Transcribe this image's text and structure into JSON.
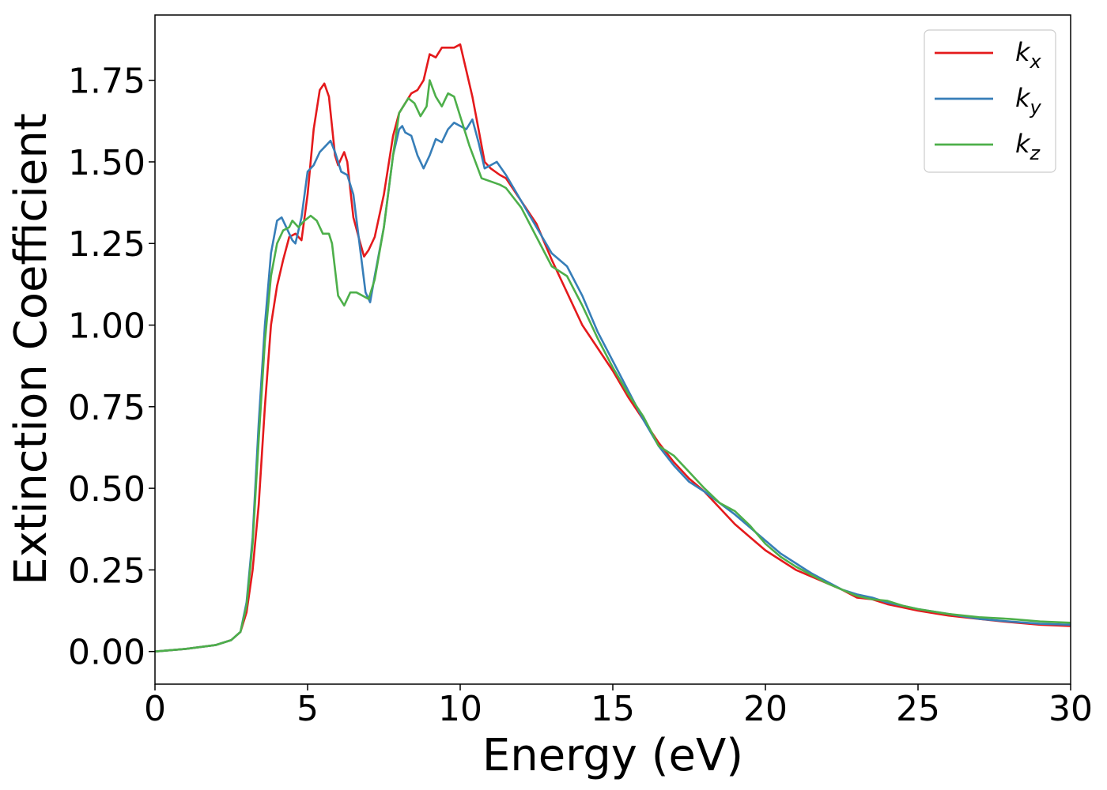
{
  "chart_data": {
    "type": "line",
    "title": "",
    "xlabel": "Energy (eV)",
    "ylabel": "Extinction Coefficient",
    "xlim": [
      0,
      30
    ],
    "ylim": [
      -0.1,
      1.95
    ],
    "x_ticks": [
      0,
      5,
      10,
      15,
      20,
      25,
      30
    ],
    "y_ticks": [
      0.0,
      0.25,
      0.5,
      0.75,
      1.0,
      1.25,
      1.5,
      1.75
    ],
    "x_tick_labels": [
      "0",
      "5",
      "10",
      "15",
      "20",
      "25",
      "30"
    ],
    "y_tick_labels": [
      "0.00",
      "0.25",
      "0.50",
      "0.75",
      "1.00",
      "1.25",
      "1.50",
      "1.75"
    ],
    "grid": false,
    "legend_position": "top-right",
    "series": [
      {
        "name": "k",
        "subscript": "x",
        "color": "#e41a1c",
        "points": [
          [
            0,
            0.0
          ],
          [
            1,
            0.008
          ],
          [
            2,
            0.02
          ],
          [
            2.5,
            0.035
          ],
          [
            2.8,
            0.06
          ],
          [
            3.0,
            0.12
          ],
          [
            3.2,
            0.25
          ],
          [
            3.4,
            0.45
          ],
          [
            3.6,
            0.75
          ],
          [
            3.8,
            1.0
          ],
          [
            4.0,
            1.12
          ],
          [
            4.2,
            1.2
          ],
          [
            4.4,
            1.27
          ],
          [
            4.6,
            1.28
          ],
          [
            4.8,
            1.26
          ],
          [
            5.0,
            1.4
          ],
          [
            5.2,
            1.6
          ],
          [
            5.4,
            1.72
          ],
          [
            5.55,
            1.74
          ],
          [
            5.7,
            1.7
          ],
          [
            5.9,
            1.52
          ],
          [
            6.0,
            1.49
          ],
          [
            6.2,
            1.53
          ],
          [
            6.3,
            1.5
          ],
          [
            6.5,
            1.33
          ],
          [
            6.7,
            1.26
          ],
          [
            6.85,
            1.21
          ],
          [
            7.0,
            1.23
          ],
          [
            7.2,
            1.27
          ],
          [
            7.5,
            1.4
          ],
          [
            7.8,
            1.58
          ],
          [
            8.0,
            1.65
          ],
          [
            8.2,
            1.68
          ],
          [
            8.4,
            1.71
          ],
          [
            8.6,
            1.72
          ],
          [
            8.8,
            1.75
          ],
          [
            9.0,
            1.83
          ],
          [
            9.2,
            1.82
          ],
          [
            9.4,
            1.85
          ],
          [
            9.6,
            1.85
          ],
          [
            9.8,
            1.85
          ],
          [
            10.0,
            1.86
          ],
          [
            10.2,
            1.78
          ],
          [
            10.4,
            1.7
          ],
          [
            10.6,
            1.6
          ],
          [
            10.8,
            1.5
          ],
          [
            11.0,
            1.48
          ],
          [
            11.3,
            1.46
          ],
          [
            11.5,
            1.45
          ],
          [
            12.0,
            1.38
          ],
          [
            12.5,
            1.31
          ],
          [
            13.0,
            1.2
          ],
          [
            13.5,
            1.1
          ],
          [
            14.0,
            1.0
          ],
          [
            14.5,
            0.93
          ],
          [
            15.0,
            0.86
          ],
          [
            15.5,
            0.78
          ],
          [
            16.0,
            0.71
          ],
          [
            16.5,
            0.64
          ],
          [
            17.0,
            0.58
          ],
          [
            17.5,
            0.53
          ],
          [
            18.0,
            0.49
          ],
          [
            18.5,
            0.44
          ],
          [
            19.0,
            0.39
          ],
          [
            19.5,
            0.35
          ],
          [
            20.0,
            0.31
          ],
          [
            20.5,
            0.28
          ],
          [
            21.0,
            0.25
          ],
          [
            21.5,
            0.23
          ],
          [
            22.0,
            0.21
          ],
          [
            22.5,
            0.19
          ],
          [
            23.0,
            0.165
          ],
          [
            23.5,
            0.16
          ],
          [
            24.0,
            0.145
          ],
          [
            24.5,
            0.135
          ],
          [
            25.0,
            0.125
          ],
          [
            26.0,
            0.11
          ],
          [
            27.0,
            0.1
          ],
          [
            28.0,
            0.09
          ],
          [
            29.0,
            0.082
          ],
          [
            30.0,
            0.078
          ]
        ]
      },
      {
        "name": "k",
        "subscript": "y",
        "color": "#377eb8",
        "points": [
          [
            0,
            0.0
          ],
          [
            1,
            0.008
          ],
          [
            2,
            0.02
          ],
          [
            2.5,
            0.035
          ],
          [
            2.8,
            0.06
          ],
          [
            3.0,
            0.15
          ],
          [
            3.2,
            0.35
          ],
          [
            3.4,
            0.7
          ],
          [
            3.6,
            1.0
          ],
          [
            3.8,
            1.22
          ],
          [
            4.0,
            1.32
          ],
          [
            4.15,
            1.33
          ],
          [
            4.3,
            1.3
          ],
          [
            4.5,
            1.26
          ],
          [
            4.6,
            1.25
          ],
          [
            4.8,
            1.33
          ],
          [
            5.0,
            1.47
          ],
          [
            5.2,
            1.49
          ],
          [
            5.4,
            1.53
          ],
          [
            5.6,
            1.55
          ],
          [
            5.75,
            1.565
          ],
          [
            5.9,
            1.53
          ],
          [
            6.1,
            1.47
          ],
          [
            6.3,
            1.46
          ],
          [
            6.5,
            1.4
          ],
          [
            6.7,
            1.25
          ],
          [
            6.9,
            1.1
          ],
          [
            7.05,
            1.07
          ],
          [
            7.2,
            1.15
          ],
          [
            7.5,
            1.3
          ],
          [
            7.8,
            1.52
          ],
          [
            8.0,
            1.6
          ],
          [
            8.1,
            1.61
          ],
          [
            8.2,
            1.59
          ],
          [
            8.4,
            1.58
          ],
          [
            8.6,
            1.52
          ],
          [
            8.8,
            1.48
          ],
          [
            9.0,
            1.52
          ],
          [
            9.2,
            1.57
          ],
          [
            9.4,
            1.56
          ],
          [
            9.6,
            1.6
          ],
          [
            9.8,
            1.62
          ],
          [
            10.0,
            1.61
          ],
          [
            10.2,
            1.6
          ],
          [
            10.4,
            1.63
          ],
          [
            10.6,
            1.56
          ],
          [
            10.8,
            1.48
          ],
          [
            11.0,
            1.49
          ],
          [
            11.2,
            1.5
          ],
          [
            11.5,
            1.46
          ],
          [
            12.0,
            1.38
          ],
          [
            12.5,
            1.3
          ],
          [
            13.0,
            1.22
          ],
          [
            13.5,
            1.18
          ],
          [
            14.0,
            1.09
          ],
          [
            14.5,
            0.98
          ],
          [
            15.0,
            0.89
          ],
          [
            15.5,
            0.8
          ],
          [
            16.0,
            0.71
          ],
          [
            16.5,
            0.63
          ],
          [
            17.0,
            0.57
          ],
          [
            17.5,
            0.52
          ],
          [
            18.0,
            0.49
          ],
          [
            18.5,
            0.455
          ],
          [
            19.0,
            0.42
          ],
          [
            19.5,
            0.38
          ],
          [
            20.0,
            0.34
          ],
          [
            20.5,
            0.3
          ],
          [
            21.0,
            0.27
          ],
          [
            21.5,
            0.24
          ],
          [
            22.0,
            0.215
          ],
          [
            22.5,
            0.19
          ],
          [
            23.0,
            0.175
          ],
          [
            23.5,
            0.165
          ],
          [
            24.0,
            0.15
          ],
          [
            24.5,
            0.14
          ],
          [
            25.0,
            0.13
          ],
          [
            26.0,
            0.115
          ],
          [
            27.0,
            0.1
          ],
          [
            28.0,
            0.092
          ],
          [
            29.0,
            0.085
          ],
          [
            30.0,
            0.082
          ]
        ]
      },
      {
        "name": "k",
        "subscript": "z",
        "color": "#4daf4a",
        "points": [
          [
            0,
            0.0
          ],
          [
            1,
            0.008
          ],
          [
            2,
            0.02
          ],
          [
            2.5,
            0.035
          ],
          [
            2.8,
            0.06
          ],
          [
            3.0,
            0.14
          ],
          [
            3.2,
            0.33
          ],
          [
            3.4,
            0.65
          ],
          [
            3.6,
            0.95
          ],
          [
            3.8,
            1.15
          ],
          [
            4.0,
            1.25
          ],
          [
            4.2,
            1.29
          ],
          [
            4.4,
            1.3
          ],
          [
            4.5,
            1.32
          ],
          [
            4.7,
            1.3
          ],
          [
            4.9,
            1.32
          ],
          [
            5.1,
            1.335
          ],
          [
            5.3,
            1.32
          ],
          [
            5.5,
            1.28
          ],
          [
            5.7,
            1.28
          ],
          [
            5.8,
            1.25
          ],
          [
            6.0,
            1.09
          ],
          [
            6.2,
            1.06
          ],
          [
            6.4,
            1.1
          ],
          [
            6.6,
            1.1
          ],
          [
            6.8,
            1.09
          ],
          [
            7.0,
            1.08
          ],
          [
            7.2,
            1.14
          ],
          [
            7.5,
            1.3
          ],
          [
            7.8,
            1.52
          ],
          [
            8.0,
            1.65
          ],
          [
            8.3,
            1.695
          ],
          [
            8.5,
            1.68
          ],
          [
            8.7,
            1.64
          ],
          [
            8.9,
            1.67
          ],
          [
            9.0,
            1.75
          ],
          [
            9.2,
            1.7
          ],
          [
            9.4,
            1.67
          ],
          [
            9.6,
            1.71
          ],
          [
            9.8,
            1.7
          ],
          [
            10.0,
            1.64
          ],
          [
            10.3,
            1.55
          ],
          [
            10.5,
            1.5
          ],
          [
            10.7,
            1.45
          ],
          [
            11.0,
            1.44
          ],
          [
            11.3,
            1.43
          ],
          [
            11.5,
            1.42
          ],
          [
            12.0,
            1.36
          ],
          [
            12.5,
            1.27
          ],
          [
            13.0,
            1.18
          ],
          [
            13.5,
            1.15
          ],
          [
            14.0,
            1.06
          ],
          [
            14.5,
            0.96
          ],
          [
            15.0,
            0.87
          ],
          [
            15.5,
            0.79
          ],
          [
            16.0,
            0.72
          ],
          [
            16.5,
            0.63
          ],
          [
            17.0,
            0.6
          ],
          [
            17.5,
            0.55
          ],
          [
            18.0,
            0.5
          ],
          [
            18.5,
            0.455
          ],
          [
            19.0,
            0.43
          ],
          [
            19.5,
            0.385
          ],
          [
            20.0,
            0.33
          ],
          [
            20.5,
            0.29
          ],
          [
            21.0,
            0.26
          ],
          [
            21.5,
            0.235
          ],
          [
            22.0,
            0.21
          ],
          [
            22.5,
            0.19
          ],
          [
            23.0,
            0.17
          ],
          [
            23.5,
            0.16
          ],
          [
            24.0,
            0.155
          ],
          [
            24.5,
            0.14
          ],
          [
            25.0,
            0.13
          ],
          [
            26.0,
            0.115
          ],
          [
            27.0,
            0.105
          ],
          [
            28.0,
            0.1
          ],
          [
            29.0,
            0.092
          ],
          [
            30.0,
            0.088
          ]
        ]
      }
    ]
  }
}
